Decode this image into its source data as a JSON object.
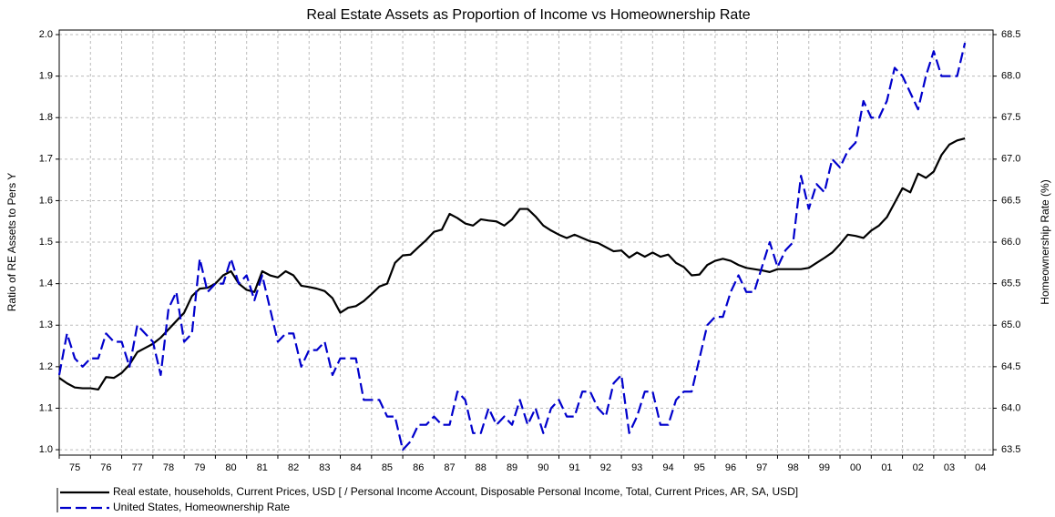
{
  "chart_data": {
    "type": "line",
    "title": "Real Estate Assets as Proportion of Income vs Homeownership Rate",
    "ylabel": "Ratio of RE Assets to Pers Y",
    "y2label": "Homeownership Rate (%)",
    "grid": true,
    "legend": "bottom",
    "xlim": [
      1975,
      2004.9
    ],
    "xticks": [
      {
        "value": 1975,
        "label": "75"
      },
      {
        "value": 1976,
        "label": "76"
      },
      {
        "value": 1977,
        "label": "77"
      },
      {
        "value": 1978,
        "label": "78"
      },
      {
        "value": 1979,
        "label": "79"
      },
      {
        "value": 1980,
        "label": "80"
      },
      {
        "value": 1981,
        "label": "81"
      },
      {
        "value": 1982,
        "label": "82"
      },
      {
        "value": 1983,
        "label": "83"
      },
      {
        "value": 1984,
        "label": "84"
      },
      {
        "value": 1985,
        "label": "85"
      },
      {
        "value": 1986,
        "label": "86"
      },
      {
        "value": 1987,
        "label": "87"
      },
      {
        "value": 1988,
        "label": "88"
      },
      {
        "value": 1989,
        "label": "89"
      },
      {
        "value": 1990,
        "label": "90"
      },
      {
        "value": 1991,
        "label": "91"
      },
      {
        "value": 1992,
        "label": "92"
      },
      {
        "value": 1993,
        "label": "93"
      },
      {
        "value": 1994,
        "label": "94"
      },
      {
        "value": 1995,
        "label": "95"
      },
      {
        "value": 1996,
        "label": "96"
      },
      {
        "value": 1997,
        "label": "97"
      },
      {
        "value": 1998,
        "label": "98"
      },
      {
        "value": 1999,
        "label": "99"
      },
      {
        "value": 2000,
        "label": "00"
      },
      {
        "value": 2001,
        "label": "01"
      },
      {
        "value": 2002,
        "label": "02"
      },
      {
        "value": 2003,
        "label": "03"
      },
      {
        "value": 2004,
        "label": "04"
      }
    ],
    "ylim": [
      0.987,
      2.011
    ],
    "yticks": [
      {
        "value": 1,
        "label": "1.0"
      },
      1.1,
      1.2,
      1.3,
      1.4,
      1.5,
      1.6,
      1.7,
      1.8,
      1.9,
      {
        "value": 2,
        "label": "2.0"
      }
    ],
    "y2lim": [
      63.435,
      68.555
    ],
    "y2ticks": [
      63.5,
      {
        "value": 64,
        "label": "64.0"
      },
      64.5,
      {
        "value": 65,
        "label": "65.0"
      },
      65.5,
      {
        "value": 66,
        "label": "66.0"
      },
      66.5,
      {
        "value": 67,
        "label": "67.0"
      },
      67.5,
      {
        "value": 68,
        "label": "68.0"
      },
      68.5
    ],
    "x": [
      1975,
      1975.25,
      1975.5,
      1975.75,
      1976,
      1976.25,
      1976.5,
      1976.75,
      1977,
      1977.25,
      1977.5,
      1977.75,
      1978,
      1978.25,
      1978.5,
      1978.75,
      1979,
      1979.25,
      1979.5,
      1979.75,
      1980,
      1980.25,
      1980.5,
      1980.75,
      1981,
      1981.25,
      1981.5,
      1981.75,
      1982,
      1982.25,
      1982.5,
      1982.75,
      1983,
      1983.25,
      1983.5,
      1983.75,
      1984,
      1984.25,
      1984.5,
      1984.75,
      1985,
      1985.25,
      1985.5,
      1985.75,
      1986,
      1986.25,
      1986.5,
      1986.75,
      1987,
      1987.25,
      1987.5,
      1987.75,
      1988,
      1988.25,
      1988.5,
      1988.75,
      1989,
      1989.25,
      1989.5,
      1989.75,
      1990,
      1990.25,
      1990.5,
      1990.75,
      1991,
      1991.25,
      1991.5,
      1991.75,
      1992,
      1992.25,
      1992.5,
      1992.75,
      1993,
      1993.25,
      1993.5,
      1993.75,
      1994,
      1994.25,
      1994.5,
      1994.75,
      1995,
      1995.25,
      1995.5,
      1995.75,
      1996,
      1996.25,
      1996.5,
      1996.75,
      1997,
      1997.25,
      1997.5,
      1997.75,
      1998,
      1998.25,
      1998.5,
      1998.75,
      1999,
      1999.25,
      1999.5,
      1999.75,
      2000,
      2000.25,
      2000.5,
      2000.75,
      2001,
      2001.25,
      2001.5,
      2001.75,
      2002,
      2002.25,
      2002.5,
      2002.75,
      2003,
      2003.25,
      2003.5,
      2003.75,
      2004
    ],
    "series": [
      {
        "name": "Real estate, households, Current Prices, USD [ / Personal Income Account, Disposable Personal Income, Total, Current Prices, AR, SA, USD]",
        "color": "#000000",
        "style": "solid",
        "axis": "y",
        "values": [
          1.173,
          1.16,
          1.15,
          1.148,
          1.148,
          1.145,
          1.175,
          1.173,
          1.185,
          1.205,
          1.235,
          1.245,
          1.255,
          1.27,
          1.29,
          1.31,
          1.33,
          1.37,
          1.388,
          1.39,
          1.4,
          1.42,
          1.43,
          1.4,
          1.385,
          1.38,
          1.43,
          1.42,
          1.415,
          1.43,
          1.42,
          1.395,
          1.392,
          1.388,
          1.382,
          1.365,
          1.33,
          1.342,
          1.346,
          1.358,
          1.375,
          1.393,
          1.4,
          1.45,
          1.468,
          1.47,
          1.488,
          1.505,
          1.525,
          1.53,
          1.568,
          1.558,
          1.545,
          1.54,
          1.555,
          1.552,
          1.55,
          1.54,
          1.555,
          1.58,
          1.58,
          1.562,
          1.54,
          1.528,
          1.518,
          1.51,
          1.518,
          1.51,
          1.502,
          1.498,
          1.488,
          1.478,
          1.48,
          1.463,
          1.475,
          1.465,
          1.475,
          1.465,
          1.47,
          1.45,
          1.44,
          1.42,
          1.422,
          1.445,
          1.455,
          1.46,
          1.455,
          1.445,
          1.438,
          1.435,
          1.432,
          1.428,
          1.435,
          1.435,
          1.435,
          1.435,
          1.438,
          1.45,
          1.462,
          1.475,
          1.495,
          1.518,
          1.515,
          1.51,
          1.528,
          1.54,
          1.56,
          1.595,
          1.63,
          1.62,
          1.665,
          1.655,
          1.67,
          1.71,
          1.735,
          1.745,
          1.75
        ]
      },
      {
        "name": "United States, Homeownership Rate",
        "color": "#0000cc",
        "style": "dashed",
        "axis": "y2",
        "values": [
          64.4,
          64.9,
          64.6,
          64.5,
          64.6,
          64.6,
          64.9,
          64.8,
          64.8,
          64.5,
          65.0,
          64.9,
          64.8,
          64.4,
          65.2,
          65.4,
          64.8,
          64.9,
          65.8,
          65.4,
          65.5,
          65.5,
          65.8,
          65.5,
          65.6,
          65.3,
          65.6,
          65.2,
          64.8,
          64.9,
          64.9,
          64.5,
          64.7,
          64.7,
          64.8,
          64.4,
          64.6,
          64.6,
          64.6,
          64.1,
          64.1,
          64.1,
          63.9,
          63.9,
          63.5,
          63.6,
          63.8,
          63.8,
          63.9,
          63.8,
          63.8,
          64.2,
          64.1,
          63.7,
          63.7,
          64.0,
          63.8,
          63.9,
          63.8,
          64.1,
          63.8,
          64.0,
          63.7,
          64.0,
          64.1,
          63.9,
          63.9,
          64.2,
          64.2,
          64.0,
          63.9,
          64.3,
          64.4,
          63.7,
          63.9,
          64.2,
          64.2,
          63.8,
          63.8,
          64.1,
          64.2,
          64.2,
          64.6,
          65.0,
          65.1,
          65.1,
          65.4,
          65.6,
          65.4,
          65.4,
          65.7,
          66.0,
          65.7,
          65.9,
          66.0,
          66.8,
          66.4,
          66.7,
          66.6,
          67.0,
          66.9,
          67.1,
          67.2,
          67.7,
          67.5,
          67.5,
          67.7,
          68.1,
          68.0,
          67.8,
          67.6,
          68.0,
          68.3,
          68.0,
          68.0,
          68.0,
          68.4
        ]
      }
    ]
  }
}
